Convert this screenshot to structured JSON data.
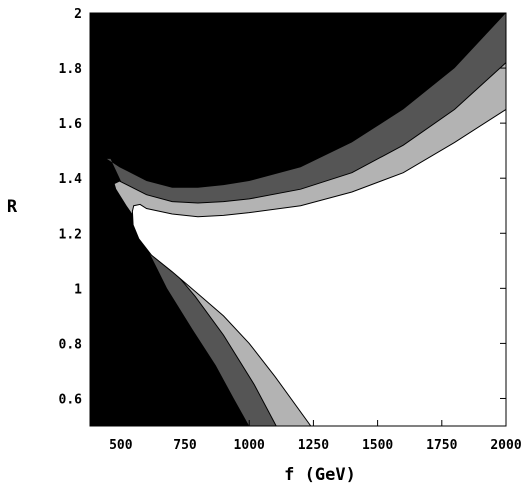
{
  "chart_data": {
    "type": "area",
    "title": "",
    "xlabel": "f  (GeV)",
    "ylabel": "R",
    "xlim": [
      380,
      2000
    ],
    "ylim": [
      0.5,
      2.0
    ],
    "xticks": [
      500,
      750,
      1000,
      1250,
      1500,
      1750,
      2000
    ],
    "xtick_labels": [
      "500",
      "750",
      "1000",
      "1250",
      "1500",
      "1750",
      "2000"
    ],
    "yticks": [
      0.6,
      0.8,
      1.0,
      1.2,
      1.4,
      1.6,
      1.8,
      2.0
    ],
    "ytick_labels": [
      "0.6",
      "0.8",
      "1",
      "1.2",
      "1.4",
      "1.6",
      "1.8",
      "2"
    ],
    "background_color": "#000000",
    "grid": false,
    "regions": [
      {
        "fill": "#555555",
        "boundary": [
          [
            446,
            1.47
          ],
          [
            495,
            1.44
          ],
          [
            600,
            1.39
          ],
          [
            700,
            1.365
          ],
          [
            800,
            1.365
          ],
          [
            900,
            1.375
          ],
          [
            1000,
            1.39
          ],
          [
            1200,
            1.44
          ],
          [
            1400,
            1.53
          ],
          [
            1600,
            1.65
          ],
          [
            1800,
            1.8
          ],
          [
            2000,
            2.0
          ],
          [
            2000,
            0.5
          ],
          [
            1000,
            0.5
          ],
          [
            940,
            0.6
          ],
          [
            870,
            0.72
          ],
          [
            780,
            0.85
          ],
          [
            680,
            1.0
          ],
          [
            600,
            1.15
          ],
          [
            560,
            1.25
          ],
          [
            520,
            1.35
          ],
          [
            480,
            1.43
          ],
          [
            460,
            1.47
          ]
        ]
      },
      {
        "fill": "#b3b3b3",
        "boundary": [
          [
            474,
            1.38
          ],
          [
            495,
            1.39
          ],
          [
            600,
            1.34
          ],
          [
            700,
            1.315
          ],
          [
            800,
            1.31
          ],
          [
            900,
            1.315
          ],
          [
            1000,
            1.325
          ],
          [
            1200,
            1.36
          ],
          [
            1400,
            1.42
          ],
          [
            1600,
            1.52
          ],
          [
            1800,
            1.65
          ],
          [
            2000,
            1.82
          ],
          [
            2000,
            0.5
          ],
          [
            1105,
            0.5
          ],
          [
            1020,
            0.65
          ],
          [
            900,
            0.83
          ],
          [
            790,
            0.97
          ],
          [
            700,
            1.07
          ],
          [
            640,
            1.14
          ],
          [
            580,
            1.22
          ],
          [
            520,
            1.3
          ],
          [
            480,
            1.36
          ]
        ]
      },
      {
        "fill": "#ffffff",
        "boundary": [
          [
            545,
            1.28
          ],
          [
            550,
            1.3
          ],
          [
            575,
            1.305
          ],
          [
            600,
            1.29
          ],
          [
            700,
            1.27
          ],
          [
            800,
            1.26
          ],
          [
            900,
            1.265
          ],
          [
            1000,
            1.275
          ],
          [
            1200,
            1.3
          ],
          [
            1400,
            1.35
          ],
          [
            1600,
            1.42
          ],
          [
            1800,
            1.53
          ],
          [
            2000,
            1.65
          ],
          [
            2000,
            0.5
          ],
          [
            1240,
            0.5
          ],
          [
            1100,
            0.68
          ],
          [
            1000,
            0.8
          ],
          [
            900,
            0.9
          ],
          [
            800,
            0.98
          ],
          [
            700,
            1.06
          ],
          [
            620,
            1.12
          ],
          [
            570,
            1.18
          ],
          [
            548,
            1.23
          ]
        ]
      }
    ]
  }
}
